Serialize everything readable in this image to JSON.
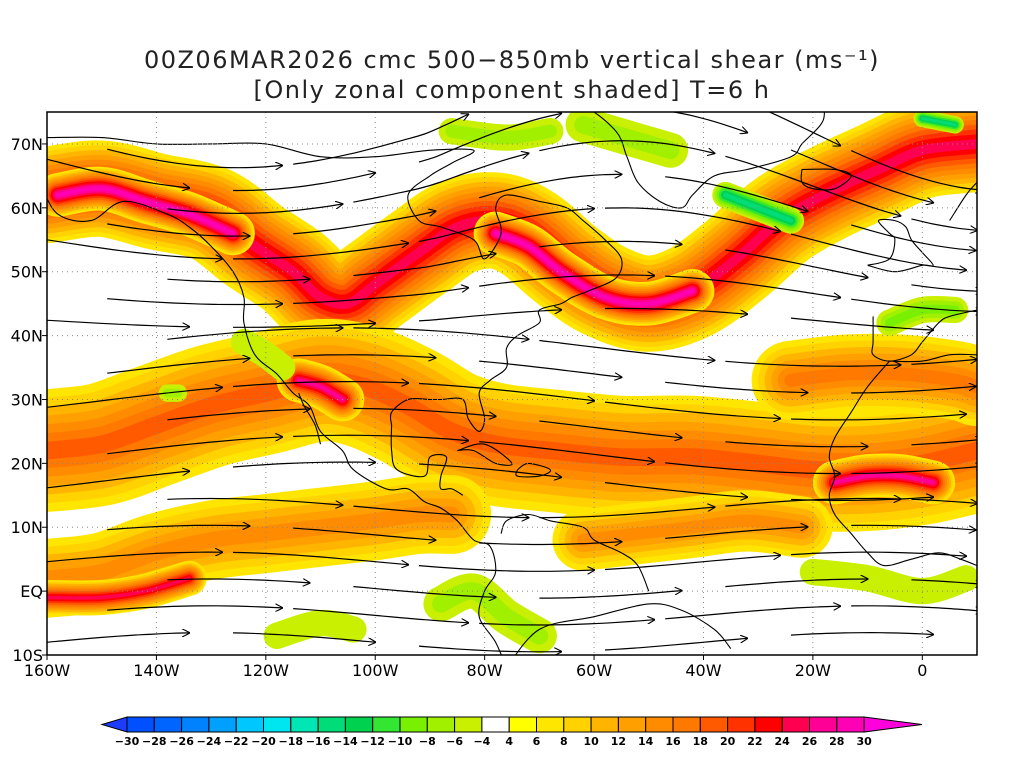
{
  "title": {
    "line1": "00Z06MAR2026 cmc 500−850mb vertical shear (ms⁻¹)",
    "line2": "[Only zonal component shaded] T=6 h"
  },
  "map": {
    "lon_range": [
      -160,
      10
    ],
    "lat_range": [
      -10,
      75
    ],
    "x_ticks": [
      {
        "lon": -160,
        "label": "160W"
      },
      {
        "lon": -140,
        "label": "140W"
      },
      {
        "lon": -120,
        "label": "120W"
      },
      {
        "lon": -100,
        "label": "100W"
      },
      {
        "lon": -80,
        "label": "80W"
      },
      {
        "lon": -60,
        "label": "60W"
      },
      {
        "lon": -40,
        "label": "40W"
      },
      {
        "lon": -20,
        "label": "20W"
      },
      {
        "lon": 0,
        "label": "0"
      }
    ],
    "y_ticks": [
      {
        "lat": -10,
        "label": "10S"
      },
      {
        "lat": 0,
        "label": "EQ"
      },
      {
        "lat": 10,
        "label": "10N"
      },
      {
        "lat": 20,
        "label": "20N"
      },
      {
        "lat": 30,
        "label": "30N"
      },
      {
        "lat": 40,
        "label": "40N"
      },
      {
        "lat": 50,
        "label": "50N"
      },
      {
        "lat": 60,
        "label": "60N"
      },
      {
        "lat": 70,
        "label": "70N"
      }
    ],
    "grid": "dotted",
    "shear_bands": [
      {
        "name": "pacific-jet",
        "pts": [
          [
            -160,
            62
          ],
          [
            -150,
            63
          ],
          [
            -140,
            61
          ],
          [
            -130,
            59
          ],
          [
            -122,
            54
          ],
          [
            -115,
            50
          ],
          [
            -110,
            46
          ],
          [
            -105,
            45
          ],
          [
            -100,
            48
          ],
          [
            -92,
            53
          ],
          [
            -85,
            57
          ],
          [
            -78,
            58
          ],
          [
            -72,
            56
          ],
          [
            -65,
            51
          ],
          [
            -58,
            47
          ],
          [
            -50,
            45
          ],
          [
            -42,
            47
          ],
          [
            -34,
            52
          ],
          [
            -26,
            58
          ],
          [
            -18,
            62
          ],
          [
            -8,
            66
          ],
          [
            0,
            69
          ],
          [
            10,
            70
          ]
        ],
        "w": 11,
        "core": 24
      },
      {
        "name": "core-west",
        "pts": [
          [
            -158,
            62
          ],
          [
            -150,
            63
          ],
          [
            -142,
            61
          ],
          [
            -134,
            59
          ],
          [
            -126,
            56
          ]
        ],
        "w": 5,
        "core": 28
      },
      {
        "name": "core-atlantic",
        "pts": [
          [
            -78,
            56
          ],
          [
            -72,
            54
          ],
          [
            -66,
            50
          ],
          [
            -58,
            46
          ],
          [
            -50,
            45
          ],
          [
            -42,
            47
          ]
        ],
        "w": 5,
        "core": 28
      },
      {
        "name": "subtropical-jet",
        "pts": [
          [
            -160,
            22
          ],
          [
            -150,
            23
          ],
          [
            -140,
            26
          ],
          [
            -130,
            29
          ],
          [
            -120,
            31
          ],
          [
            -110,
            33
          ],
          [
            -102,
            32
          ],
          [
            -94,
            29
          ],
          [
            -86,
            25
          ],
          [
            -78,
            23
          ],
          [
            -68,
            22
          ],
          [
            -55,
            21
          ],
          [
            -42,
            21
          ],
          [
            -30,
            20
          ],
          [
            -20,
            19
          ],
          [
            -10,
            19
          ],
          [
            0,
            20
          ],
          [
            10,
            22
          ]
        ],
        "w": 14,
        "core": 18
      },
      {
        "name": "baja-max",
        "pts": [
          [
            -114,
            33
          ],
          [
            -110,
            32
          ],
          [
            -106,
            30
          ]
        ],
        "w": 5,
        "core": 26
      },
      {
        "name": "africa-max",
        "pts": [
          [
            -16,
            17
          ],
          [
            -10,
            18
          ],
          [
            -4,
            18
          ],
          [
            2,
            17
          ]
        ],
        "w": 5,
        "core": 26
      },
      {
        "name": "northeast-atlantic",
        "pts": [
          [
            -24,
            33
          ],
          [
            -14,
            34
          ],
          [
            -4,
            34
          ],
          [
            6,
            33
          ],
          [
            10,
            32
          ]
        ],
        "w": 9,
        "core": 16
      },
      {
        "name": "tropical-pacific",
        "pts": [
          [
            -160,
            2
          ],
          [
            -150,
            3
          ],
          [
            -140,
            6
          ],
          [
            -130,
            8
          ],
          [
            -120,
            9
          ],
          [
            -110,
            10
          ],
          [
            -100,
            11
          ],
          [
            -92,
            12
          ],
          [
            -86,
            12
          ]
        ],
        "w": 9,
        "core": 14
      },
      {
        "name": "tropical-atlantic",
        "pts": [
          [
            -62,
            8
          ],
          [
            -52,
            9
          ],
          [
            -42,
            10
          ],
          [
            -32,
            11
          ],
          [
            -22,
            10
          ]
        ],
        "w": 7,
        "core": 14
      },
      {
        "name": "equatorial-pacific",
        "pts": [
          [
            -160,
            -1
          ],
          [
            -150,
            -1
          ],
          [
            -142,
            0
          ],
          [
            -134,
            2
          ]
        ],
        "w": 4,
        "core": 24
      }
    ],
    "easterly_areas": [
      {
        "pts": [
          [
            -124,
            39
          ],
          [
            -120,
            37
          ],
          [
            -117,
            35
          ]
        ],
        "w": 3,
        "core": -6
      },
      {
        "pts": [
          [
            -138,
            31
          ],
          [
            -136,
            31
          ]
        ],
        "w": 2,
        "core": -8
      },
      {
        "pts": [
          [
            -88,
            -2
          ],
          [
            -82,
            0
          ],
          [
            -76,
            -4
          ],
          [
            -70,
            -7
          ]
        ],
        "w": 4,
        "core": -8
      },
      {
        "pts": [
          [
            -118,
            -7
          ],
          [
            -110,
            -5
          ],
          [
            -104,
            -6
          ]
        ],
        "w": 3,
        "core": -6
      },
      {
        "pts": [
          [
            -62,
            73
          ],
          [
            -54,
            71
          ],
          [
            -46,
            69
          ]
        ],
        "w": 4,
        "core": -8
      },
      {
        "pts": [
          [
            -36,
            62
          ],
          [
            -30,
            60
          ],
          [
            -24,
            58
          ]
        ],
        "w": 3,
        "core": -16
      },
      {
        "pts": [
          [
            -86,
            72
          ],
          [
            -76,
            71
          ],
          [
            -68,
            72
          ]
        ],
        "w": 3,
        "core": -8
      },
      {
        "pts": [
          [
            -6,
            42
          ],
          [
            0,
            44
          ],
          [
            6,
            44
          ]
        ],
        "w": 3,
        "core": -10
      },
      {
        "pts": [
          [
            0,
            74
          ],
          [
            6,
            73
          ]
        ],
        "w": 2,
        "core": -16
      },
      {
        "pts": [
          [
            -20,
            3
          ],
          [
            -10,
            2
          ],
          [
            0,
            0
          ],
          [
            8,
            2
          ]
        ],
        "w": 3,
        "core": -6
      }
    ]
  },
  "colorbar": {
    "values": [
      -30,
      -28,
      -26,
      -24,
      -22,
      -20,
      -18,
      -16,
      -14,
      -12,
      -10,
      -8,
      -6,
      -4,
      4,
      6,
      8,
      10,
      12,
      14,
      16,
      18,
      20,
      22,
      24,
      26,
      28,
      30
    ],
    "labels": [
      "−30",
      "−28",
      "−26",
      "−24",
      "−22",
      "−20",
      "−18",
      "−16",
      "−14",
      "−12",
      "−10",
      "−8",
      "−6",
      "−4",
      "4",
      "6",
      "8",
      "10",
      "12",
      "14",
      "16",
      "18",
      "20",
      "22",
      "24",
      "26",
      "28",
      "30"
    ],
    "colors": [
      "#1e3cff",
      "#0050ff",
      "#0064ff",
      "#0082ff",
      "#00a0ff",
      "#00c8ff",
      "#00e6f0",
      "#00e6b4",
      "#00dc78",
      "#00d250",
      "#32e632",
      "#78f000",
      "#a0f000",
      "#c8f000",
      "#ffffff",
      "#ffff00",
      "#ffe600",
      "#ffd200",
      "#ffb400",
      "#ffa000",
      "#ff8c00",
      "#ff7800",
      "#ff5a00",
      "#ff3200",
      "#ff0000",
      "#ff0050",
      "#ff0096",
      "#ff00b4",
      "#ff00dc"
    ]
  }
}
